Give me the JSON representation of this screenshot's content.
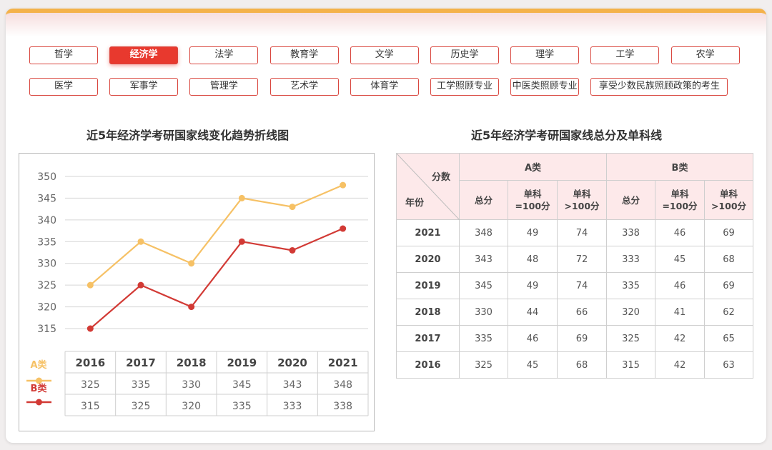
{
  "nav": {
    "row1": [
      "哲学",
      "经济学",
      "法学",
      "教育学",
      "文学",
      "历史学",
      "理学",
      "工学",
      "农学"
    ],
    "row2": [
      "医学",
      "军事学",
      "管理学",
      "艺术学",
      "体育学",
      "工学照顾专业",
      "中医类照顾专业",
      "享受少数民族照顾政策的考生"
    ],
    "active": "经济学"
  },
  "chart_title": "近5年经济学考研国家线变化趋势折线图",
  "table_title": "近5年经济学考研国家线总分及单科线",
  "colors": {
    "series_a": "#f6c165",
    "series_b": "#d23a35",
    "accent": "#e8392e",
    "border": "#f4b24a"
  },
  "chart_data": {
    "type": "line",
    "x": [
      "2016",
      "2017",
      "2018",
      "2019",
      "2020",
      "2021"
    ],
    "ylim": [
      315,
      350
    ],
    "yticks": [
      350,
      345,
      340,
      335,
      330,
      325,
      320,
      315
    ],
    "grid": true,
    "legend": "left, below plot",
    "series": [
      {
        "name": "A类",
        "values": [
          325,
          335,
          330,
          345,
          343,
          348
        ]
      },
      {
        "name": "B类",
        "values": [
          315,
          325,
          320,
          335,
          333,
          338
        ]
      }
    ]
  },
  "table": {
    "corner_top": "分数",
    "corner_bottom": "年份",
    "group_a": "A类",
    "group_b": "B类",
    "subheaders": [
      "总分",
      "单科\n=100分",
      "单科\n>100分",
      "总分",
      "单科\n=100分",
      "单科\n>100分"
    ],
    "rows": [
      [
        "2021",
        "348",
        "49",
        "74",
        "338",
        "46",
        "69"
      ],
      [
        "2020",
        "343",
        "48",
        "72",
        "333",
        "45",
        "68"
      ],
      [
        "2019",
        "345",
        "49",
        "74",
        "335",
        "46",
        "69"
      ],
      [
        "2018",
        "330",
        "44",
        "66",
        "320",
        "41",
        "62"
      ],
      [
        "2017",
        "335",
        "46",
        "69",
        "325",
        "42",
        "65"
      ],
      [
        "2016",
        "325",
        "45",
        "68",
        "315",
        "42",
        "63"
      ]
    ]
  }
}
